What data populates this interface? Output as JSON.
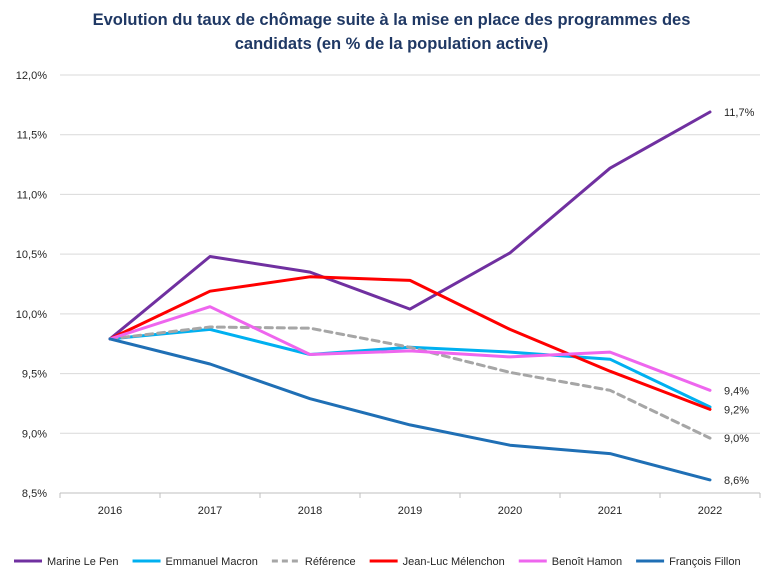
{
  "chart_data": {
    "type": "line",
    "title_line1": "Evolution du taux de chômage suite à la mise en place des programmes des",
    "title_line2": "candidats (en % de la population active)",
    "xlabel": "",
    "ylabel": "",
    "categories": [
      "2016",
      "2017",
      "2018",
      "2019",
      "2020",
      "2021",
      "2022"
    ],
    "ylim": [
      8.5,
      12.0
    ],
    "yticks": [
      {
        "value": 8.5,
        "label": "8,5%"
      },
      {
        "value": 9.0,
        "label": "9,0%"
      },
      {
        "value": 9.5,
        "label": "9,5%"
      },
      {
        "value": 10.0,
        "label": "10,0%"
      },
      {
        "value": 10.5,
        "label": "10,5%"
      },
      {
        "value": 11.0,
        "label": "11,0%"
      },
      {
        "value": 11.5,
        "label": "11,5%"
      },
      {
        "value": 12.0,
        "label": "12,0%"
      }
    ],
    "grid": "horizontal",
    "legend_position": "bottom",
    "series": [
      {
        "name": "Marine Le Pen",
        "color": "#7030a0",
        "dashed": false,
        "values": [
          9.79,
          10.48,
          10.35,
          10.04,
          10.51,
          11.22,
          11.69
        ],
        "end_label": "11,7%"
      },
      {
        "name": "Emmanuel Macron",
        "color": "#00b0f0",
        "dashed": false,
        "values": [
          9.79,
          9.87,
          9.66,
          9.72,
          9.68,
          9.62,
          9.22
        ],
        "end_label": ""
      },
      {
        "name": "Référence",
        "color": "#a6a6a6",
        "dashed": true,
        "values": [
          9.79,
          9.89,
          9.88,
          9.72,
          9.51,
          9.36,
          8.96
        ],
        "end_label": "9,0%"
      },
      {
        "name": "Jean-Luc Mélenchon",
        "color": "#ff0000",
        "dashed": false,
        "values": [
          9.79,
          10.19,
          10.31,
          10.28,
          9.87,
          9.52,
          9.2
        ],
        "end_label": "9,2%"
      },
      {
        "name": "Benoît Hamon",
        "color": "#ee66ee",
        "dashed": false,
        "values": [
          9.79,
          10.06,
          9.66,
          9.69,
          9.64,
          9.68,
          9.36
        ],
        "end_label": "9,4%"
      },
      {
        "name": "François Fillon",
        "color": "#1f6fb5",
        "dashed": false,
        "values": [
          9.79,
          9.58,
          9.29,
          9.07,
          8.9,
          8.83,
          8.61
        ],
        "end_label": "8,6%"
      }
    ]
  }
}
